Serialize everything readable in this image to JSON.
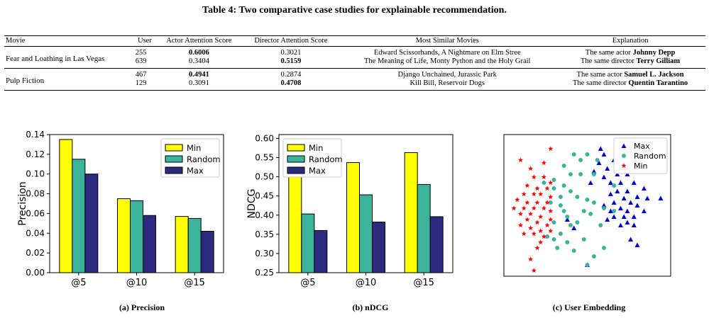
{
  "table": {
    "caption": "Table 4: Two comparative case studies for explainable recommendation.",
    "headers": [
      "Movie",
      "User",
      "Actor Attention Score",
      "Director Attention Score",
      "Most Similar Movies",
      "Explanation"
    ],
    "groups": [
      {
        "movie": "Fear and Loathing in Las Vegas",
        "rows": [
          {
            "user": "255",
            "actor": "0.6006",
            "actor_bold": true,
            "director": "0.3021",
            "director_bold": false,
            "similar": "Edward Scissorhands, A Nightmare on Elm Stree",
            "expl_prefix": "The same actor ",
            "expl_name": "Johnny Depp"
          },
          {
            "user": "639",
            "actor": "0.3404",
            "actor_bold": false,
            "director": "0.5159",
            "director_bold": true,
            "similar": "The Meaning of Life, Monty Python and the Holy Grail",
            "expl_prefix": "The same director ",
            "expl_name": "Terry Gilliam"
          }
        ]
      },
      {
        "movie": "Pulp Fiction",
        "rows": [
          {
            "user": "467",
            "actor": "0.4941",
            "actor_bold": true,
            "director": "0.2874",
            "director_bold": false,
            "similar": "Django Unchained, Jurassic Park",
            "expl_prefix": "The same actor ",
            "expl_name": "Samuel L. Jackson"
          },
          {
            "user": "129",
            "actor": "0.3091",
            "actor_bold": false,
            "director": "0.4708",
            "director_bold": true,
            "similar": "Kill Bill, Reservoir Dogs",
            "expl_prefix": "The same director ",
            "expl_name": "Quentin Tarantino"
          }
        ]
      }
    ]
  },
  "captions": {
    "a": "(a) Precision",
    "b": "(b) nDCG",
    "c": "(c) User Embedding"
  },
  "chart_data": [
    {
      "type": "bar",
      "title": "",
      "xlabel": "",
      "ylabel": "Precision",
      "categories": [
        "@5",
        "@10",
        "@15"
      ],
      "ylim": [
        0,
        0.14
      ],
      "yticks": [
        0,
        0.02,
        0.04,
        0.06,
        0.08,
        0.1,
        0.12,
        0.14
      ],
      "ytick_labels": [
        "0.00",
        "0.02",
        "0.04",
        "0.06",
        "0.08",
        "0.10",
        "0.12",
        "0.14"
      ],
      "legend_position": "top-right",
      "series": [
        {
          "name": "Min",
          "color": "#ffff00",
          "values": [
            0.135,
            0.075,
            0.057
          ]
        },
        {
          "name": "Random",
          "color": "#3cb49b",
          "values": [
            0.115,
            0.073,
            0.055
          ]
        },
        {
          "name": "Max",
          "color": "#2c2a7e",
          "values": [
            0.1,
            0.058,
            0.042
          ]
        }
      ]
    },
    {
      "type": "bar",
      "title": "",
      "xlabel": "",
      "ylabel": "NDCG",
      "categories": [
        "@5",
        "@10",
        "@15"
      ],
      "ylim": [
        0.25,
        0.61
      ],
      "yticks": [
        0.25,
        0.3,
        0.35,
        0.4,
        0.45,
        0.5,
        0.55,
        0.6
      ],
      "ytick_labels": [
        "0.25",
        "0.30",
        "0.35",
        "0.40",
        "0.45",
        "0.50",
        "0.55",
        "0.60"
      ],
      "legend_position": "top-left",
      "series": [
        {
          "name": "Min",
          "color": "#ffff00",
          "values": [
            0.503,
            0.537,
            0.563
          ]
        },
        {
          "name": "Random",
          "color": "#3cb49b",
          "values": [
            0.403,
            0.453,
            0.48
          ]
        },
        {
          "name": "Max",
          "color": "#2c2a7e",
          "values": [
            0.36,
            0.382,
            0.396
          ]
        }
      ]
    },
    {
      "type": "scatter",
      "title": "",
      "xlabel": "",
      "ylabel": "",
      "xlim": [
        0,
        1
      ],
      "ylim": [
        0,
        1
      ],
      "axes_ticks": false,
      "legend_position": "top-right",
      "series": [
        {
          "name": "Max",
          "color": "#0000cc",
          "marker": "triangle",
          "points": [
            [
              0.58,
              0.9
            ],
            [
              0.6,
              0.86
            ],
            [
              0.66,
              0.82
            ],
            [
              0.57,
              0.8
            ],
            [
              0.72,
              0.8
            ],
            [
              0.62,
              0.76
            ],
            [
              0.54,
              0.74
            ],
            [
              0.68,
              0.72
            ],
            [
              0.74,
              0.72
            ],
            [
              0.6,
              0.7
            ],
            [
              0.64,
              0.66
            ],
            [
              0.7,
              0.66
            ],
            [
              0.78,
              0.66
            ],
            [
              0.52,
              0.66
            ],
            [
              0.84,
              0.62
            ],
            [
              0.74,
              0.6
            ],
            [
              0.68,
              0.6
            ],
            [
              0.64,
              0.58
            ],
            [
              0.8,
              0.56
            ],
            [
              0.72,
              0.55
            ],
            [
              0.86,
              0.55
            ],
            [
              0.94,
              0.55
            ],
            [
              0.66,
              0.52
            ],
            [
              0.76,
              0.52
            ],
            [
              0.6,
              0.5
            ],
            [
              0.7,
              0.48
            ],
            [
              0.8,
              0.5
            ],
            [
              0.64,
              0.46
            ],
            [
              0.74,
              0.46
            ],
            [
              0.84,
              0.46
            ],
            [
              0.66,
              0.42
            ],
            [
              0.72,
              0.42
            ],
            [
              0.78,
              0.42
            ],
            [
              0.62,
              0.4
            ],
            [
              0.74,
              0.38
            ],
            [
              0.7,
              0.36
            ],
            [
              0.78,
              0.36
            ],
            [
              0.38,
              0.4
            ],
            [
              0.42,
              0.34
            ],
            [
              0.76,
              0.26
            ],
            [
              0.8,
              0.22
            ],
            [
              0.5,
              0.08
            ]
          ]
        },
        {
          "name": "Random",
          "color": "#3cb49b",
          "marker": "circle",
          "points": [
            [
              0.42,
              0.86
            ],
            [
              0.5,
              0.86
            ],
            [
              0.56,
              0.82
            ],
            [
              0.46,
              0.82
            ],
            [
              0.36,
              0.78
            ],
            [
              0.4,
              0.72
            ],
            [
              0.46,
              0.72
            ],
            [
              0.54,
              0.72
            ],
            [
              0.3,
              0.68
            ],
            [
              0.36,
              0.64
            ],
            [
              0.24,
              0.66
            ],
            [
              0.3,
              0.62
            ],
            [
              0.4,
              0.6
            ],
            [
              0.34,
              0.56
            ],
            [
              0.44,
              0.56
            ],
            [
              0.5,
              0.54
            ],
            [
              0.54,
              0.52
            ],
            [
              0.28,
              0.52
            ],
            [
              0.34,
              0.5
            ],
            [
              0.6,
              0.48
            ],
            [
              0.36,
              0.46
            ],
            [
              0.48,
              0.46
            ],
            [
              0.52,
              0.44
            ],
            [
              0.38,
              0.42
            ],
            [
              0.66,
              0.46
            ],
            [
              0.3,
              0.38
            ],
            [
              0.4,
              0.36
            ],
            [
              0.44,
              0.38
            ],
            [
              0.34,
              0.3
            ],
            [
              0.26,
              0.28
            ],
            [
              0.3,
              0.26
            ],
            [
              0.38,
              0.24
            ],
            [
              0.48,
              0.26
            ],
            [
              0.42,
              0.18
            ],
            [
              0.6,
              0.2
            ],
            [
              0.32,
              0.2
            ],
            [
              0.54,
              0.14
            ],
            [
              0.5,
              0.08
            ],
            [
              0.66,
              0.64
            ],
            [
              0.58,
              0.36
            ]
          ]
        },
        {
          "name": "Min",
          "color": "#ff0000",
          "marker": "star",
          "points": [
            [
              0.28,
              0.9
            ],
            [
              0.1,
              0.82
            ],
            [
              0.24,
              0.8
            ],
            [
              0.16,
              0.76
            ],
            [
              0.18,
              0.7
            ],
            [
              0.24,
              0.7
            ],
            [
              0.28,
              0.66
            ],
            [
              0.14,
              0.64
            ],
            [
              0.2,
              0.62
            ],
            [
              0.26,
              0.62
            ],
            [
              0.12,
              0.58
            ],
            [
              0.18,
              0.58
            ],
            [
              0.22,
              0.58
            ],
            [
              0.28,
              0.56
            ],
            [
              0.08,
              0.54
            ],
            [
              0.14,
              0.52
            ],
            [
              0.2,
              0.52
            ],
            [
              0.26,
              0.52
            ],
            [
              0.06,
              0.48
            ],
            [
              0.12,
              0.48
            ],
            [
              0.18,
              0.48
            ],
            [
              0.24,
              0.48
            ],
            [
              0.28,
              0.46
            ],
            [
              0.1,
              0.44
            ],
            [
              0.16,
              0.44
            ],
            [
              0.22,
              0.42
            ],
            [
              0.28,
              0.4
            ],
            [
              0.14,
              0.4
            ],
            [
              0.2,
              0.38
            ],
            [
              0.26,
              0.36
            ],
            [
              0.1,
              0.36
            ],
            [
              0.16,
              0.34
            ],
            [
              0.22,
              0.32
            ],
            [
              0.28,
              0.32
            ],
            [
              0.12,
              0.3
            ],
            [
              0.18,
              0.3
            ],
            [
              0.24,
              0.28
            ],
            [
              0.22,
              0.24
            ],
            [
              0.2,
              0.2
            ],
            [
              0.16,
              0.12
            ],
            [
              0.18,
              0.04
            ]
          ]
        }
      ]
    }
  ]
}
